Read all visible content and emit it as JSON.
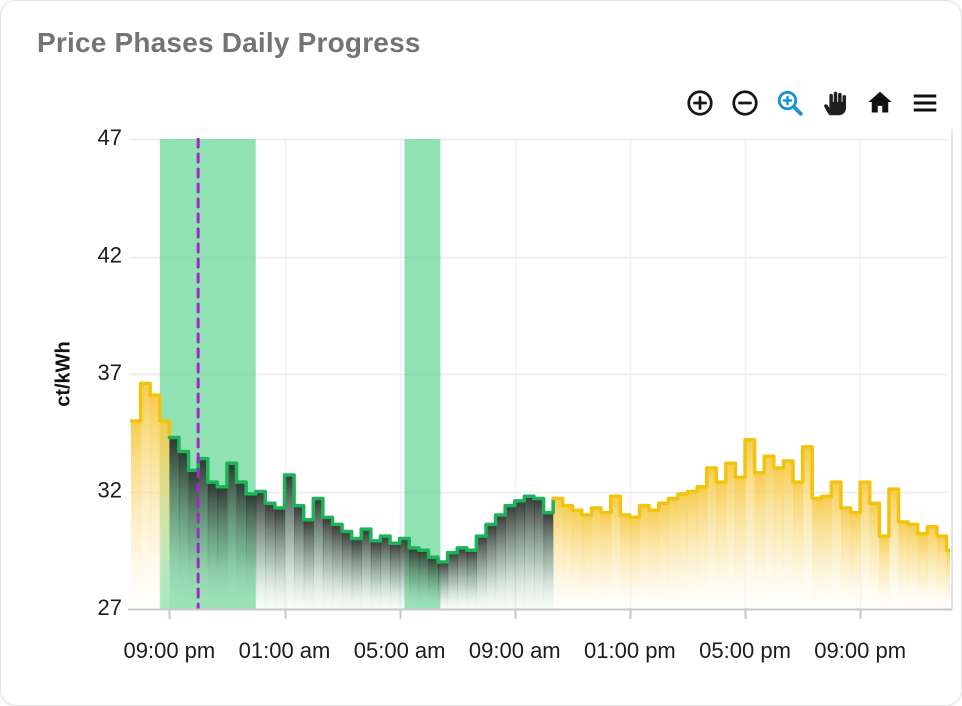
{
  "card": {
    "title": "Price Phases Daily Progress"
  },
  "toolbar": {
    "icon_color": "#161616",
    "active_color": "#1794CE",
    "items": [
      {
        "label": "Zoom in"
      },
      {
        "label": "Zoom out"
      },
      {
        "label": "Selection zoom"
      },
      {
        "label": "Panning"
      },
      {
        "label": "Reset zoom"
      },
      {
        "label": "Menu"
      }
    ]
  },
  "chart_data": {
    "type": "step-area",
    "title": "Price Phases Daily Progress",
    "ylabel": "ct/kWh",
    "ylim": [
      27,
      47
    ],
    "yticks": [
      27,
      32,
      37,
      42,
      47
    ],
    "x_start_time": "19:40",
    "step_minutes": 20,
    "x_total_hours": 28.35,
    "xticks": [
      {
        "label": "09:00 pm",
        "hours": 1.333
      },
      {
        "label": "01:00 am",
        "hours": 5.333
      },
      {
        "label": "05:00 am",
        "hours": 9.333
      },
      {
        "label": "09:00 am",
        "hours": 13.333
      },
      {
        "label": "01:00 pm",
        "hours": 17.333
      },
      {
        "label": "05:00 pm",
        "hours": 21.333
      },
      {
        "label": "09:00 pm",
        "hours": 25.333
      }
    ],
    "values": [
      35.0,
      36.6,
      36.1,
      35.0,
      34.3,
      33.7,
      32.9,
      33.4,
      32.4,
      32.2,
      33.2,
      32.4,
      31.9,
      32.0,
      31.5,
      31.3,
      32.7,
      31.4,
      30.8,
      31.7,
      30.9,
      30.6,
      30.3,
      30.0,
      30.4,
      29.9,
      30.1,
      29.8,
      30.0,
      29.6,
      29.5,
      29.2,
      29.0,
      29.4,
      29.6,
      29.5,
      30.1,
      30.6,
      31.0,
      31.4,
      31.6,
      31.8,
      31.7,
      31.1,
      31.7,
      31.4,
      31.2,
      31.0,
      31.3,
      31.1,
      31.8,
      31.0,
      30.9,
      31.4,
      31.2,
      31.5,
      31.7,
      31.9,
      32.0,
      32.2,
      33.0,
      32.4,
      33.2,
      32.6,
      34.2,
      32.8,
      33.5,
      33.0,
      33.3,
      32.4,
      33.9,
      31.7,
      31.8,
      32.4,
      31.3,
      31.1,
      32.4,
      31.5,
      30.1,
      32.1,
      30.7,
      30.6,
      30.2,
      30.5,
      30.1,
      29.5
    ],
    "segments": [
      {
        "name": "high-price-phase-evening",
        "palette": "yellow",
        "from": 0,
        "to": 3
      },
      {
        "name": "low-price-phase-night",
        "palette": "green",
        "from": 4,
        "to": 43
      },
      {
        "name": "high-price-phase-day",
        "palette": "yellow",
        "from": 44,
        "to": 85
      }
    ],
    "bands": [
      {
        "name": "green-phase-window-1",
        "start_hours": 1.0,
        "end_hours": 4.333
      },
      {
        "name": "green-phase-window-2",
        "start_hours": 9.5,
        "end_hours": 10.75
      }
    ],
    "now_line": {
      "hours_from_start": 2.333,
      "time": "22:00"
    },
    "legend": "off",
    "grid": "on",
    "colors": {
      "yellow_line": "#F3C40F",
      "green_line": "#1EB259",
      "band_fill": "rgba(124,221,164,0.85)",
      "now_line": "#A428C8",
      "grid_h": "#ececec",
      "grid_v": "#f1f1f1",
      "plot_right_border": "#e3e3e3",
      "axis_line": "#c9c9c9",
      "tick_text": "#1c1c1c",
      "axis_title_text": "#111111",
      "yellow_area_stops": [
        [
          0,
          "rgba(246,202,70,0.95)"
        ],
        [
          0.6,
          "rgba(250,231,170,0.55)"
        ],
        [
          1,
          "rgba(255,252,243,0.2)"
        ]
      ],
      "green_area_stops": [
        [
          0,
          "rgba(38,40,38,0.92)"
        ],
        [
          0.55,
          "rgba(95,135,110,0.5)"
        ],
        [
          1,
          "rgba(205,235,215,0.14)"
        ]
      ]
    }
  }
}
